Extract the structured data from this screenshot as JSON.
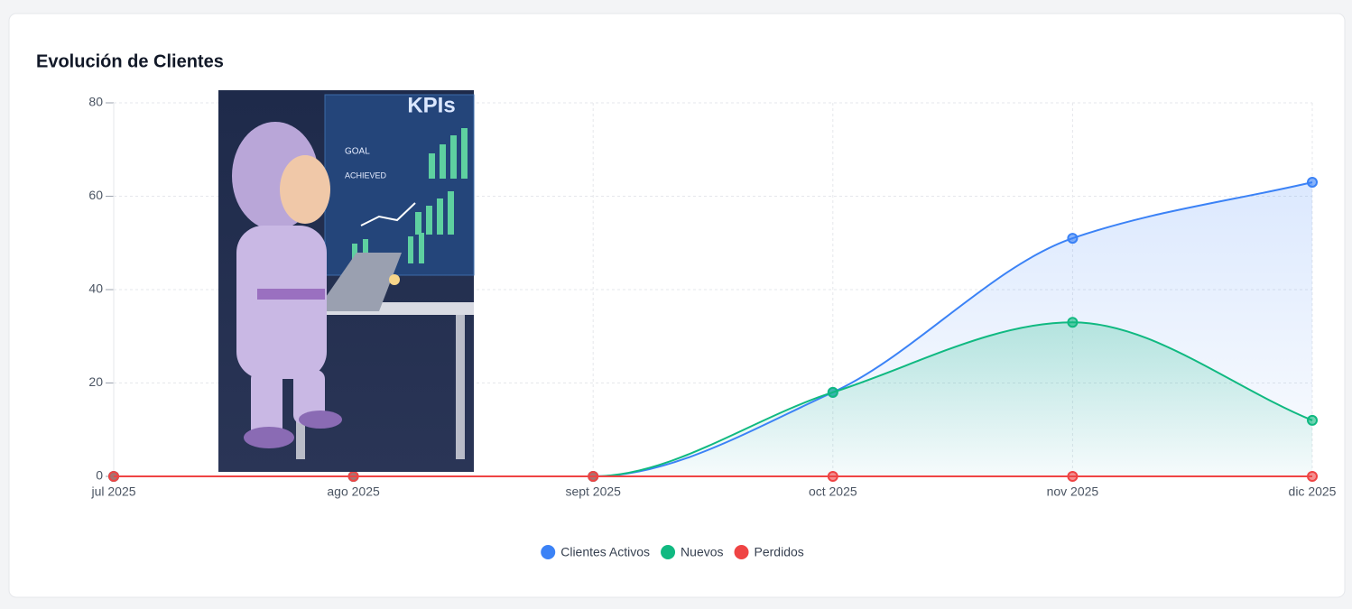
{
  "chart_data": {
    "type": "line",
    "title": "Evolución de Clientes",
    "categories": [
      "jul 2025",
      "ago 2025",
      "sept 2025",
      "oct 2025",
      "nov 2025",
      "dic 2025"
    ],
    "series": [
      {
        "name": "Clientes Activos",
        "color": "#3b82f6",
        "values": [
          0,
          0,
          0,
          18,
          51,
          63
        ]
      },
      {
        "name": "Nuevos",
        "color": "#10b981",
        "values": [
          0,
          0,
          0,
          18,
          33,
          12
        ]
      },
      {
        "name": "Perdidos",
        "color": "#ef4444",
        "values": [
          0,
          0,
          0,
          0,
          0,
          0
        ]
      }
    ],
    "ylim": [
      0,
      80
    ],
    "yticks": [
      0,
      20,
      40,
      60,
      80
    ],
    "grid": true,
    "legend": "bottom"
  },
  "illustration": {
    "heading": "KPIs",
    "labels": [
      "GOAL",
      "ACHIEVED"
    ]
  }
}
